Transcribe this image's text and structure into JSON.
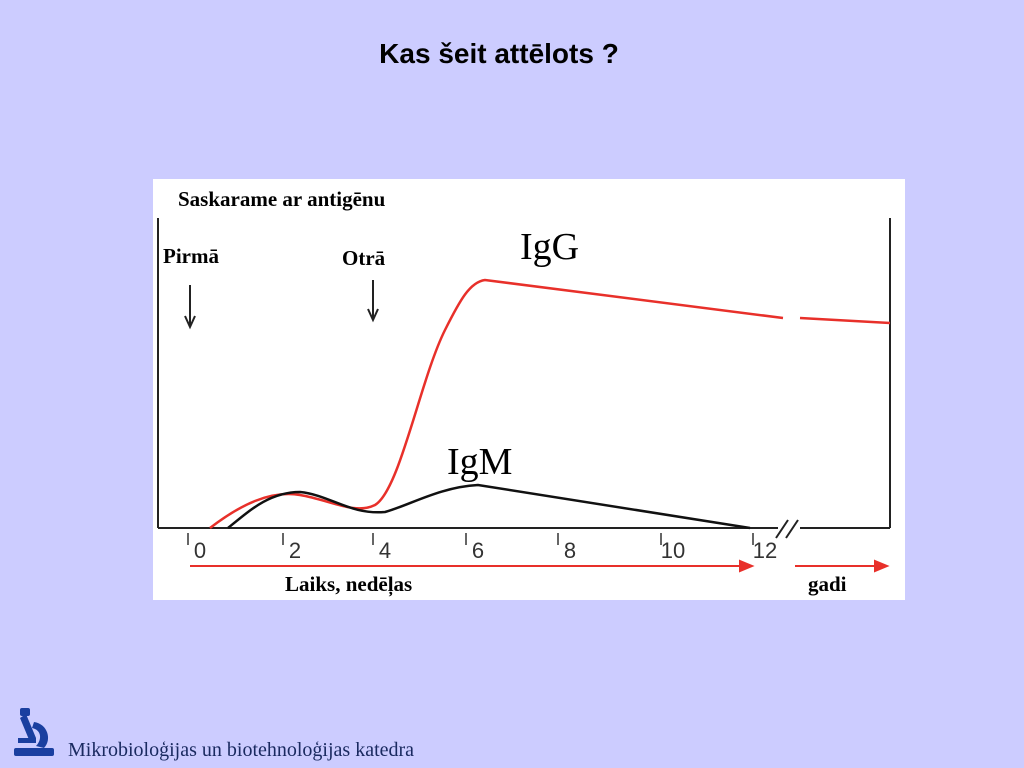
{
  "title": "Kas šeit attēlots ?",
  "figure": {
    "heading": "Saskarame ar antigēnu",
    "first": "Pirmā",
    "second": "Otrā",
    "igg": "IgG",
    "igm": "IgM",
    "ticks": [
      0,
      2,
      4,
      6,
      8,
      10,
      12
    ],
    "time_label": "Laiks, nedēļas",
    "years_label": "gadi"
  },
  "footer": {
    "text": "Mikrobioloģijas un biotehnoloģijas katedra"
  }
}
